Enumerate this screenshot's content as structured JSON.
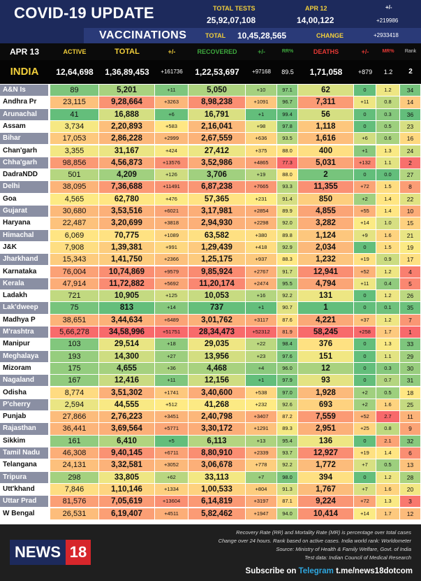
{
  "header": {
    "title": "COVID-19 UPDATE",
    "total_tests_label": "TOTAL TESTS",
    "total_tests_value": "25,92,07,108",
    "date_label": "APR 12",
    "date_value": "14,00,122",
    "date_change": "+219986",
    "vaccinations_label": "VACCINATIONS",
    "vacc_total_label": "TOTAL",
    "vacc_total_value": "10,45,28,565",
    "vacc_change_label": "CHANGE",
    "vacc_change_value": "+2933418"
  },
  "columns": {
    "date": "APR 13",
    "active": "ACTIVE",
    "total": "TOTAL",
    "plus1": "+/-",
    "recovered": "RECOVERED",
    "plus2": "+/-",
    "rr": "RR%",
    "deaths": "DEATHS",
    "plus3": "+/-",
    "mr": "MR%",
    "rank": "Rank"
  },
  "india": {
    "name": "INDIA",
    "active": "12,64,698",
    "total": "1,36,89,453",
    "total_change": "+161736",
    "recovered": "1,22,53,697",
    "rec_change": "+97168",
    "rr": "89.5",
    "deaths": "1,71,058",
    "death_change": "+879",
    "mr": "1.2",
    "rank": "2"
  },
  "states": [
    {
      "name": "A&N Is",
      "active": "89",
      "total": "5,201",
      "tc": "+11",
      "rec": "5,050",
      "rc": "+10",
      "rr": "97.1",
      "deaths": "62",
      "dc": "0",
      "mr": "1.2",
      "rank": "34"
    },
    {
      "name": "Andhra Pr",
      "active": "23,115",
      "total": "9,28,664",
      "tc": "+3263",
      "rec": "8,98,238",
      "rc": "+1091",
      "rr": "96.7",
      "deaths": "7,311",
      "dc": "+11",
      "mr": "0.8",
      "rank": "14"
    },
    {
      "name": "Arunachal",
      "active": "41",
      "total": "16,888",
      "tc": "+6",
      "rec": "16,791",
      "rc": "+1",
      "rr": "99.4",
      "deaths": "56",
      "dc": "0",
      "mr": "0.3",
      "rank": "36"
    },
    {
      "name": "Assam",
      "active": "3,734",
      "total": "2,20,893",
      "tc": "+583",
      "rec": "2,16,041",
      "rc": "+98",
      "rr": "97.8",
      "deaths": "1,118",
      "dc": "0",
      "mr": "0.5",
      "rank": "23"
    },
    {
      "name": "Bihar",
      "active": "17,053",
      "total": "2,86,228",
      "tc": "+2999",
      "rec": "2,67,559",
      "rc": "+636",
      "rr": "93.5",
      "deaths": "1,616",
      "dc": "+6",
      "mr": "0.6",
      "rank": "16"
    },
    {
      "name": "Chan'garh",
      "active": "3,355",
      "total": "31,167",
      "tc": "+424",
      "rec": "27,412",
      "rc": "+375",
      "rr": "88.0",
      "deaths": "400",
      "dc": "+1",
      "mr": "1.3",
      "rank": "24"
    },
    {
      "name": "Chha'garh",
      "active": "98,856",
      "total": "4,56,873",
      "tc": "+13576",
      "rec": "3,52,986",
      "rc": "+4865",
      "rr": "77.3",
      "deaths": "5,031",
      "dc": "+132",
      "mr": "1.1",
      "rank": "2"
    },
    {
      "name": "DadraNDD",
      "active": "501",
      "total": "4,209",
      "tc": "+126",
      "rec": "3,706",
      "rc": "+19",
      "rr": "88.0",
      "deaths": "2",
      "dc": "0",
      "mr": "0.0",
      "rank": "27"
    },
    {
      "name": "Delhi",
      "active": "38,095",
      "total": "7,36,688",
      "tc": "+11491",
      "rec": "6,87,238",
      "rc": "+7665",
      "rr": "93.3",
      "deaths": "11,355",
      "dc": "+72",
      "mr": "1.5",
      "rank": "8"
    },
    {
      "name": "Goa",
      "active": "4,565",
      "total": "62,780",
      "tc": "+476",
      "rec": "57,365",
      "rc": "+231",
      "rr": "91.4",
      "deaths": "850",
      "dc": "+2",
      "mr": "1.4",
      "rank": "22"
    },
    {
      "name": "Gujarat",
      "active": "30,680",
      "total": "3,53,516",
      "tc": "+6021",
      "rec": "3,17,981",
      "rc": "+2854",
      "rr": "89.9",
      "deaths": "4,855",
      "dc": "+55",
      "mr": "1.4",
      "rank": "10"
    },
    {
      "name": "Haryana",
      "active": "22,487",
      "total": "3,20,699",
      "tc": "+3818",
      "rec": "2,94,930",
      "rc": "+2298",
      "rr": "92.0",
      "deaths": "3,282",
      "dc": "+14",
      "mr": "1.0",
      "rank": "15"
    },
    {
      "name": "Himachal",
      "active": "6,069",
      "total": "70,775",
      "tc": "+1089",
      "rec": "63,582",
      "rc": "+380",
      "rr": "89.8",
      "deaths": "1,124",
      "dc": "+9",
      "mr": "1.6",
      "rank": "21"
    },
    {
      "name": "J&K",
      "active": "7,908",
      "total": "1,39,381",
      "tc": "+991",
      "rec": "1,29,439",
      "rc": "+418",
      "rr": "92.9",
      "deaths": "2,034",
      "dc": "0",
      "mr": "1.5",
      "rank": "19"
    },
    {
      "name": "Jharkhand",
      "active": "15,343",
      "total": "1,41,750",
      "tc": "+2366",
      "rec": "1,25,175",
      "rc": "+937",
      "rr": "88.3",
      "deaths": "1,232",
      "dc": "+19",
      "mr": "0.9",
      "rank": "17"
    },
    {
      "name": "Karnataka",
      "active": "76,004",
      "total": "10,74,869",
      "tc": "+9579",
      "rec": "9,85,924",
      "rc": "+2767",
      "rr": "91.7",
      "deaths": "12,941",
      "dc": "+52",
      "mr": "1.2",
      "rank": "4"
    },
    {
      "name": "Kerala",
      "active": "47,914",
      "total": "11,72,882",
      "tc": "+5692",
      "rec": "11,20,174",
      "rc": "+2474",
      "rr": "95.5",
      "deaths": "4,794",
      "dc": "+11",
      "mr": "0.4",
      "rank": "5"
    },
    {
      "name": "Ladakh",
      "active": "721",
      "total": "10,905",
      "tc": "+125",
      "rec": "10,053",
      "rc": "+16",
      "rr": "92.2",
      "deaths": "131",
      "dc": "0",
      "mr": "1.2",
      "rank": "26"
    },
    {
      "name": "Lak'dweep",
      "active": "75",
      "total": "813",
      "tc": "+14",
      "rec": "737",
      "rc": "+1",
      "rr": "90.7",
      "deaths": "1",
      "dc": "0",
      "mr": "0.1",
      "rank": "35"
    },
    {
      "name": "Madhya P",
      "active": "38,651",
      "total": "3,44,634",
      "tc": "+6489",
      "rec": "3,01,762",
      "rc": "+3117",
      "rr": "87.6",
      "deaths": "4,221",
      "dc": "+37",
      "mr": "1.2",
      "rank": "7"
    },
    {
      "name": "M'rashtra",
      "active": "5,66,278",
      "total": "34,58,996",
      "tc": "+51751",
      "rec": "28,34,473",
      "rc": "+52312",
      "rr": "81.9",
      "deaths": "58,245",
      "dc": "+258",
      "mr": "1.7",
      "rank": "1"
    },
    {
      "name": "Manipur",
      "active": "103",
      "total": "29,514",
      "tc": "+18",
      "rec": "29,035",
      "rc": "+22",
      "rr": "98.4",
      "deaths": "376",
      "dc": "0",
      "mr": "1.3",
      "rank": "33"
    },
    {
      "name": "Meghalaya",
      "active": "193",
      "total": "14,300",
      "tc": "+27",
      "rec": "13,956",
      "rc": "+23",
      "rr": "97.6",
      "deaths": "151",
      "dc": "0",
      "mr": "1.1",
      "rank": "29"
    },
    {
      "name": "Mizoram",
      "active": "175",
      "total": "4,655",
      "tc": "+36",
      "rec": "4,468",
      "rc": "+4",
      "rr": "96.0",
      "deaths": "12",
      "dc": "0",
      "mr": "0.3",
      "rank": "30"
    },
    {
      "name": "Nagaland",
      "active": "167",
      "total": "12,416",
      "tc": "+11",
      "rec": "12,156",
      "rc": "+1",
      "rr": "97.9",
      "deaths": "93",
      "dc": "0",
      "mr": "0.7",
      "rank": "31"
    },
    {
      "name": "Odisha",
      "active": "8,774",
      "total": "3,51,302",
      "tc": "+1741",
      "rec": "3,40,600",
      "rc": "+538",
      "rr": "97.0",
      "deaths": "1,928",
      "dc": "+2",
      "mr": "0.5",
      "rank": "18"
    },
    {
      "name": "P'cherry",
      "active": "2,594",
      "total": "44,555",
      "tc": "+512",
      "rec": "41,268",
      "rc": "+232",
      "rr": "92.6",
      "deaths": "693",
      "dc": "+2",
      "mr": "1.6",
      "rank": "25"
    },
    {
      "name": "Punjab",
      "active": "27,866",
      "total": "2,76,223",
      "tc": "+3451",
      "rec": "2,40,798",
      "rc": "+3407",
      "rr": "87.2",
      "deaths": "7,559",
      "dc": "+52",
      "mr": "2.7",
      "rank": "11"
    },
    {
      "name": "Rajasthan",
      "active": "36,441",
      "total": "3,69,564",
      "tc": "+5771",
      "rec": "3,30,172",
      "rc": "+1291",
      "rr": "89.3",
      "deaths": "2,951",
      "dc": "+25",
      "mr": "0.8",
      "rank": "9"
    },
    {
      "name": "Sikkim",
      "active": "161",
      "total": "6,410",
      "tc": "+5",
      "rec": "6,113",
      "rc": "+13",
      "rr": "95.4",
      "deaths": "136",
      "dc": "0",
      "mr": "2.1",
      "rank": "32"
    },
    {
      "name": "Tamil Nadu",
      "active": "46,308",
      "total": "9,40,145",
      "tc": "+6711",
      "rec": "8,80,910",
      "rc": "+2339",
      "rr": "93.7",
      "deaths": "12,927",
      "dc": "+19",
      "mr": "1.4",
      "rank": "6"
    },
    {
      "name": "Telangana",
      "active": "24,131",
      "total": "3,32,581",
      "tc": "+3052",
      "rec": "3,06,678",
      "rc": "+778",
      "rr": "92.2",
      "deaths": "1,772",
      "dc": "+7",
      "mr": "0.5",
      "rank": "13"
    },
    {
      "name": "Tripura",
      "active": "298",
      "total": "33,805",
      "tc": "+62",
      "rec": "33,113",
      "rc": "+7",
      "rr": "98.0",
      "deaths": "394",
      "dc": "0",
      "mr": "1.2",
      "rank": "28"
    },
    {
      "name": "Utt'khand",
      "active": "7,846",
      "total": "1,10,146",
      "tc": "+1334",
      "rec": "1,00,533",
      "rc": "+804",
      "rr": "91.3",
      "deaths": "1,767",
      "dc": "+7",
      "mr": "1.6",
      "rank": "20"
    },
    {
      "name": "Uttar Prad",
      "active": "81,576",
      "total": "7,05,619",
      "tc": "+13604",
      "rec": "6,14,819",
      "rc": "+3197",
      "rr": "87.1",
      "deaths": "9,224",
      "dc": "+72",
      "mr": "1.3",
      "rank": "3"
    },
    {
      "name": "W Bengal",
      "active": "26,531",
      "total": "6,19,407",
      "tc": "+4511",
      "rec": "5,82,462",
      "rc": "+1947",
      "rr": "94.0",
      "deaths": "10,414",
      "dc": "+14",
      "mr": "1.7",
      "rank": "12"
    }
  ],
  "footer": {
    "logo_text": "NEWS",
    "logo_num": "18",
    "note1": "Recovery Rate (RR) and Mortality Rate (MR) is percentage over total cases",
    "note2": "Change over 24 hours. Rank based on active cases. India world rank: Worldometer",
    "note3": "Source: Ministry of Health & Family Welfare, Govt. of India",
    "note4": "Test data: Indian Council of Medical Research",
    "subscribe_prefix": "Subscribe on ",
    "subscribe_tg": "Telegram",
    "subscribe_link": " t.me/news18dotcom"
  },
  "colors": {
    "header_bg": "#1d2a5c",
    "accent_yellow": "#f2cf3b",
    "recovered_green": "#3ea83e",
    "deaths_red": "#e53935"
  }
}
